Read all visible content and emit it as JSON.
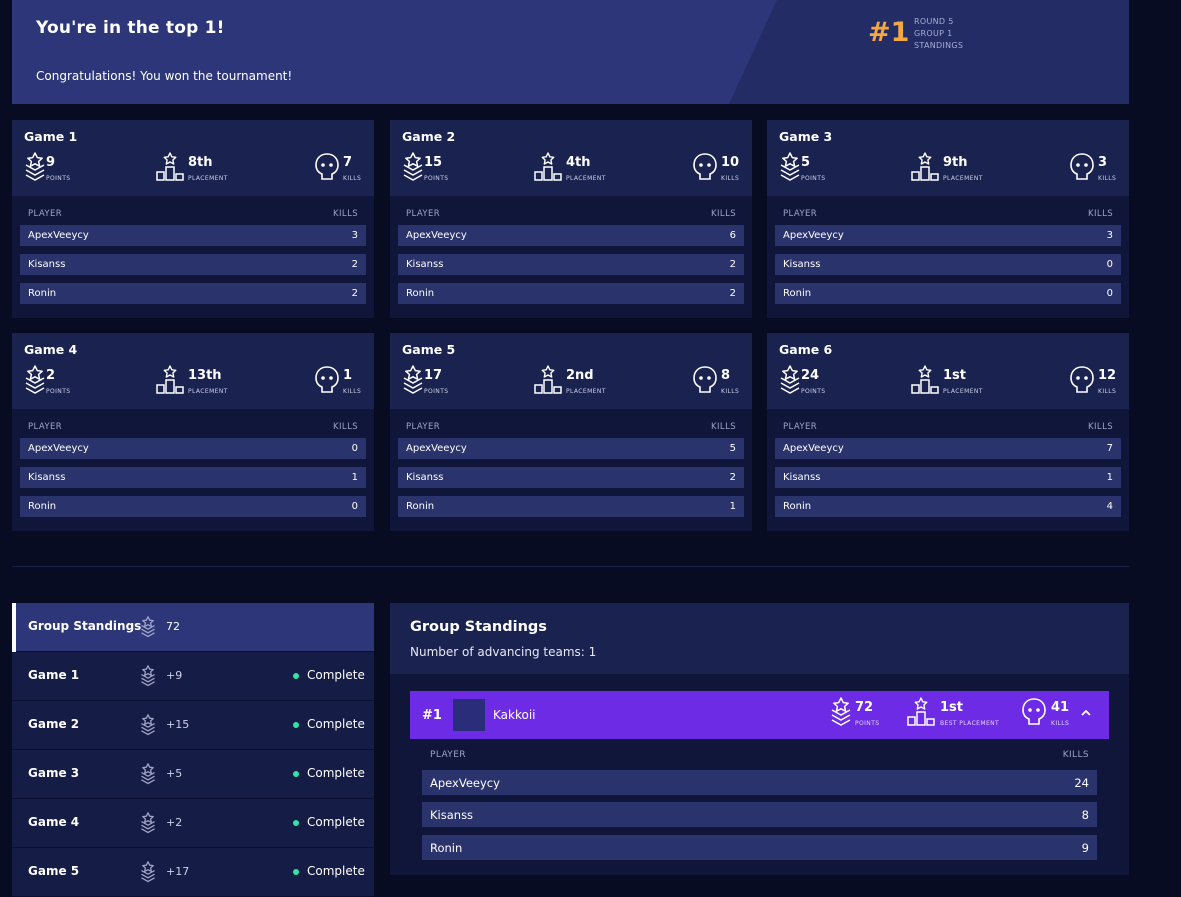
{
  "banner": {
    "title": "You're in the top 1!",
    "subtitle": "Congratulations! You won the tournament!",
    "rank": "#1",
    "round": "ROUND 5",
    "group": "GROUP 1",
    "standings": "STANDINGS"
  },
  "labels": {
    "points": "POINTS",
    "placement": "PLACEMENT",
    "kills": "KILLS",
    "player": "PLAYER",
    "best_placement": "BEST PLACEMENT"
  },
  "games": [
    {
      "name": "Game 1",
      "points": "9",
      "placement": "8th",
      "kills": "7",
      "players": [
        {
          "name": "ApexVeeycy",
          "kills": "3"
        },
        {
          "name": "Kisanss",
          "kills": "2"
        },
        {
          "name": "Ronin",
          "kills": "2"
        }
      ]
    },
    {
      "name": "Game 2",
      "points": "15",
      "placement": "4th",
      "kills": "10",
      "players": [
        {
          "name": "ApexVeeycy",
          "kills": "6"
        },
        {
          "name": "Kisanss",
          "kills": "2"
        },
        {
          "name": "Ronin",
          "kills": "2"
        }
      ]
    },
    {
      "name": "Game 3",
      "points": "5",
      "placement": "9th",
      "kills": "3",
      "players": [
        {
          "name": "ApexVeeycy",
          "kills": "3"
        },
        {
          "name": "Kisanss",
          "kills": "0"
        },
        {
          "name": "Ronin",
          "kills": "0"
        }
      ]
    },
    {
      "name": "Game 4",
      "points": "2",
      "placement": "13th",
      "kills": "1",
      "players": [
        {
          "name": "ApexVeeycy",
          "kills": "0"
        },
        {
          "name": "Kisanss",
          "kills": "1"
        },
        {
          "name": "Ronin",
          "kills": "0"
        }
      ]
    },
    {
      "name": "Game 5",
      "points": "17",
      "placement": "2nd",
      "kills": "8",
      "players": [
        {
          "name": "ApexVeeycy",
          "kills": "5"
        },
        {
          "name": "Kisanss",
          "kills": "2"
        },
        {
          "name": "Ronin",
          "kills": "1"
        }
      ]
    },
    {
      "name": "Game 6",
      "points": "24",
      "placement": "1st",
      "kills": "12",
      "players": [
        {
          "name": "ApexVeeycy",
          "kills": "7"
        },
        {
          "name": "Kisanss",
          "kills": "1"
        },
        {
          "name": "Ronin",
          "kills": "4"
        }
      ]
    }
  ],
  "nav": [
    {
      "label": "Group Standings",
      "points": "72",
      "status": "",
      "active": true
    },
    {
      "label": "Game 1",
      "points": "+9",
      "status": "Complete"
    },
    {
      "label": "Game 2",
      "points": "+15",
      "status": "Complete"
    },
    {
      "label": "Game 3",
      "points": "+5",
      "status": "Complete"
    },
    {
      "label": "Game 4",
      "points": "+2",
      "status": "Complete"
    },
    {
      "label": "Game 5",
      "points": "+17",
      "status": "Complete"
    }
  ],
  "standings": {
    "title": "Group Standings",
    "subtitle": "Number of advancing teams: 1",
    "team": {
      "rank": "#1",
      "name": "Kakkoii",
      "points": "72",
      "best_placement": "1st",
      "kills": "41",
      "players": [
        {
          "name": "ApexVeeycy",
          "kills": "24"
        },
        {
          "name": "Kisanss",
          "kills": "8"
        },
        {
          "name": "Ronin",
          "kills": "9"
        }
      ]
    }
  },
  "colors": {
    "accent": "#f5a742",
    "team_highlight": "#6d2be6",
    "complete": "#2ee6a5"
  }
}
